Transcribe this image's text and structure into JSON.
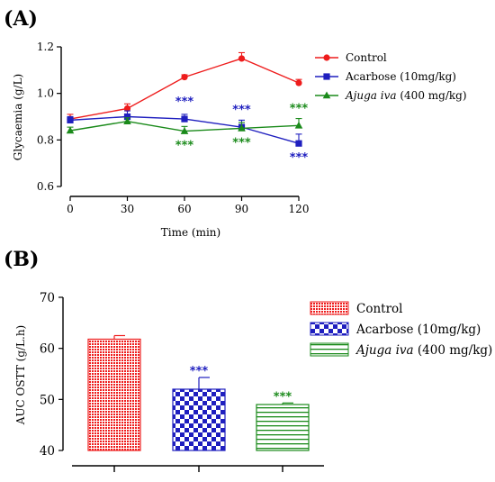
{
  "colors": {
    "control": "#ee1c1c",
    "acarbose": "#1f1fbf",
    "ajuga": "#1a8a1a",
    "axis": "#000000"
  },
  "chart_data": [
    {
      "panel": "(A)",
      "type": "line",
      "xlabel": "Time (min)",
      "ylabel": "Glycaemia (g/L)",
      "x": [
        0,
        30,
        60,
        90,
        120
      ],
      "xticks": [
        "0",
        "30",
        "60",
        "90",
        "120"
      ],
      "ylim": [
        0.6,
        1.2
      ],
      "yticks": [
        "0.6",
        "0.8",
        "1.0",
        "1.2"
      ],
      "series": [
        {
          "name": "Control",
          "key": "control",
          "marker": "circle",
          "values": [
            0.89,
            0.935,
            1.07,
            1.15,
            1.045
          ],
          "errors": [
            0.02,
            0.02,
            0.01,
            0.025,
            0.015
          ],
          "stars": [
            "",
            "",
            "",
            "",
            ""
          ]
        },
        {
          "name": "Acarbose (10mg/kg)",
          "key": "acarbose",
          "marker": "square",
          "values": [
            0.885,
            0.9,
            0.89,
            0.855,
            0.785
          ],
          "errors": [
            0.015,
            0.025,
            0.02,
            0.03,
            0.04
          ],
          "stars": [
            "",
            "",
            "***",
            "***",
            "***"
          ]
        },
        {
          "name": "Ajuga iva (400 mg/kg)",
          "name_italic": "Ajuga iva",
          "name_rest": " (400 mg/kg)",
          "key": "ajuga",
          "marker": "triangle",
          "values": [
            0.84,
            0.88,
            0.838,
            0.85,
            0.862
          ],
          "errors": [
            0.015,
            0.015,
            0.02,
            0.025,
            0.03
          ],
          "stars": [
            "",
            "",
            "***",
            "***",
            "***"
          ]
        }
      ]
    },
    {
      "panel": "(B)",
      "type": "bar",
      "ylabel": "AUC OSTT  (g/L.h)",
      "ylim": [
        40,
        70
      ],
      "yticks": [
        "40",
        "50",
        "60",
        "70"
      ],
      "categories": [
        "Control",
        "Acarbose (10mg/kg)",
        "Ajuga iva  (400 mg/kg)"
      ],
      "series": [
        {
          "name": "Control",
          "key": "control",
          "pattern": "dense",
          "value": 61.8,
          "error": 0.7,
          "stars": ""
        },
        {
          "name": "Acarbose (10mg/kg)",
          "key": "acarbose",
          "pattern": "checker",
          "value": 52.0,
          "error": 2.3,
          "stars": "***"
        },
        {
          "name": "Ajuga iva  (400 mg/kg)",
          "name_italic": "Ajuga iva",
          "name_rest": "  (400 mg/kg)",
          "key": "ajuga",
          "pattern": "hlines",
          "value": 49.0,
          "error": 0.3,
          "stars": "***"
        }
      ]
    }
  ]
}
